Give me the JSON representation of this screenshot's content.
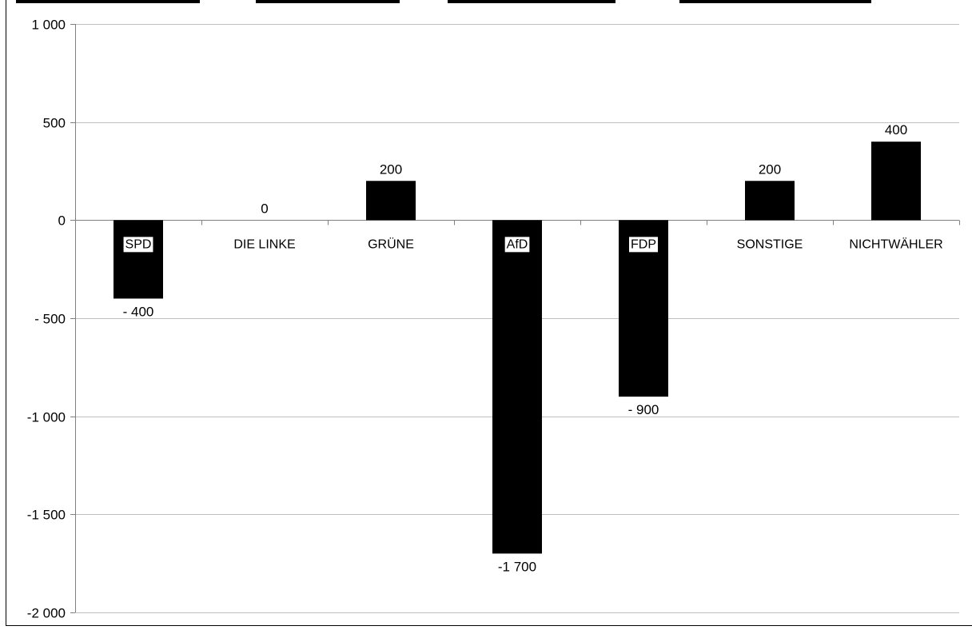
{
  "chart_data": {
    "type": "bar",
    "categories": [
      "SPD",
      "DIE LINKE",
      "GRÜNE",
      "AfD",
      "FDP",
      "SONSTIGE",
      "NICHTWÄHLER"
    ],
    "values": [
      -400,
      0,
      200,
      -1700,
      -900,
      200,
      400
    ],
    "data_labels": [
      "- 400",
      "0",
      "200",
      "-1 700",
      "- 900",
      "200",
      "400"
    ],
    "y_ticks": [
      {
        "value": 1000,
        "label": "1 000"
      },
      {
        "value": 500,
        "label": "500"
      },
      {
        "value": 0,
        "label": "0"
      },
      {
        "value": -500,
        "label": "- 500"
      },
      {
        "value": -1000,
        "label": "-1 000"
      },
      {
        "value": -1500,
        "label": "-1 500"
      },
      {
        "value": -2000,
        "label": "-2 000"
      }
    ],
    "ylim": [
      -2000,
      1000
    ],
    "grid": true,
    "bar_color": "#000000",
    "grid_color": "#bfbfbf",
    "title": "",
    "xlabel": "",
    "ylabel": ""
  }
}
